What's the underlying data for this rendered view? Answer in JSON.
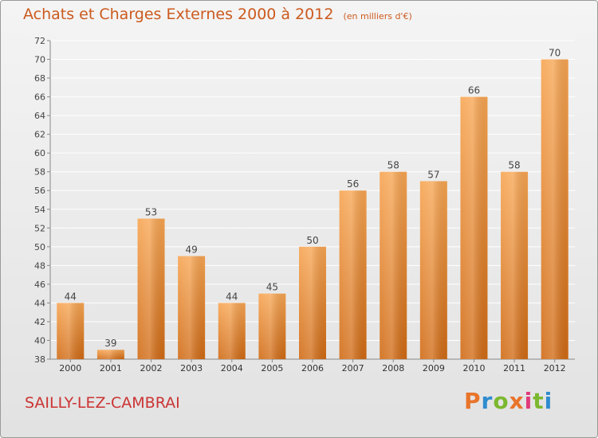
{
  "header": {
    "title": "Achats et Charges Externes 2000 à 2012",
    "subtitle": "(en milliers d'€)"
  },
  "footer": {
    "city": "SAILLY-LEZ-CAMBRAI",
    "logo": "Proxiti",
    "logo_colors": [
      "#e8742a",
      "#2f8ccf",
      "#7cb82f",
      "#e8742a",
      "#e03b7a",
      "#7cb82f",
      "#2f8ccf"
    ]
  },
  "chart_data": {
    "type": "bar",
    "categories": [
      "2000",
      "2001",
      "2002",
      "2003",
      "2004",
      "2005",
      "2006",
      "2007",
      "2008",
      "2009",
      "2010",
      "2011",
      "2012"
    ],
    "values": [
      44,
      39,
      53,
      49,
      44,
      45,
      50,
      56,
      58,
      57,
      66,
      58,
      70
    ],
    "ylim": [
      38,
      72
    ],
    "yticks": [
      38,
      40,
      42,
      44,
      46,
      48,
      50,
      52,
      54,
      56,
      58,
      60,
      62,
      64,
      66,
      68,
      70,
      72
    ],
    "grid": true,
    "bar_color": "#f08a30",
    "label_color": "#444444"
  }
}
